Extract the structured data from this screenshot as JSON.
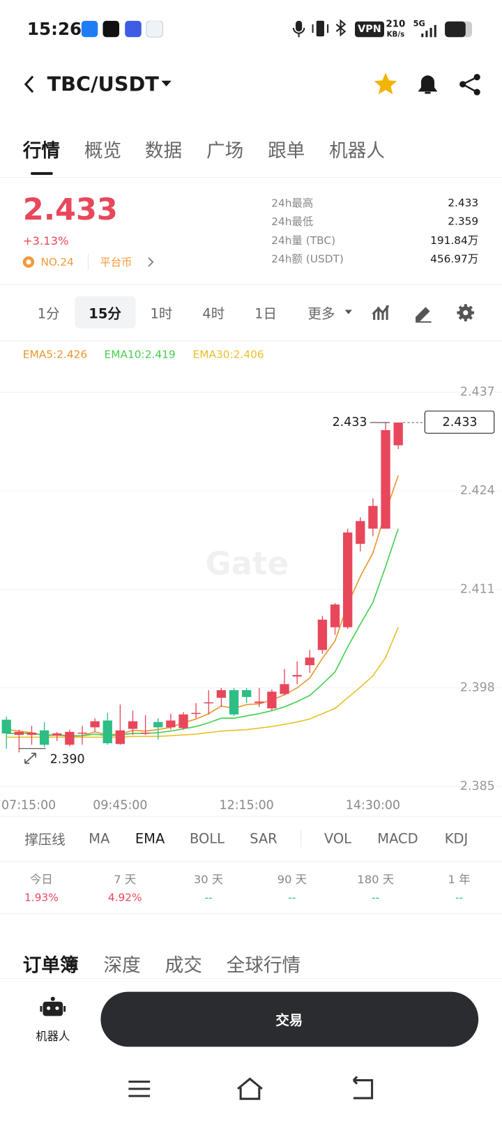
{
  "status_bar": {
    "time": "15:26",
    "vpn": "VPN",
    "speed": "210",
    "speed_unit": "KB/s",
    "network": "5G"
  },
  "header": {
    "pair": "TBC/USDT"
  },
  "tabs": [
    "行情",
    "概览",
    "数据",
    "广场",
    "跟单",
    "机器人"
  ],
  "ticker": {
    "price": "2.433",
    "change": "+3.13%",
    "rank": "NO.24",
    "tag": "平台币",
    "stats": [
      {
        "label": "24h最高",
        "value": "2.433"
      },
      {
        "label": "24h最低",
        "value": "2.359"
      },
      {
        "label": "24h量 (TBC)",
        "value": "191.84万"
      },
      {
        "label": "24h额 (USDT)",
        "value": "456.97万"
      }
    ]
  },
  "timeframes": [
    "1分",
    "15分",
    "1时",
    "4时",
    "1日",
    "更多"
  ],
  "chart_data": {
    "type": "candlestick",
    "watermark": "Gate",
    "grid": true,
    "categories": [
      "07:15:00",
      null,
      null,
      null,
      null,
      null,
      null,
      null,
      null,
      "09:45:00",
      null,
      null,
      null,
      null,
      null,
      null,
      null,
      null,
      null,
      "12:15:00",
      null,
      null,
      null,
      null,
      null,
      null,
      null,
      null,
      null,
      "14:30:00",
      null,
      null
    ],
    "up_color": "#e8475b",
    "down_color": "#2dbd85",
    "candles": {
      "open": [
        2.3938,
        2.3918,
        2.3918,
        2.3924,
        2.3917,
        2.3905,
        2.392,
        2.3928,
        2.3937,
        2.3906,
        2.3926,
        2.392,
        2.3935,
        2.3928,
        2.3927,
        2.3946,
        2.396,
        2.3967,
        2.3977,
        2.3977,
        2.396,
        2.3953,
        2.3972,
        2.3995,
        2.401,
        2.403,
        2.406,
        2.406,
        2.417,
        2.419,
        2.419,
        2.43
      ],
      "high": [
        2.3942,
        2.3925,
        2.393,
        2.3935,
        2.3922,
        2.3925,
        2.393,
        2.394,
        2.3947,
        2.3958,
        2.395,
        2.3944,
        2.394,
        2.3946,
        2.3948,
        2.396,
        2.3977,
        2.398,
        2.398,
        2.398,
        2.398,
        2.3978,
        2.4005,
        2.4015,
        2.403,
        2.4075,
        2.4092,
        2.419,
        2.4205,
        2.423,
        2.433,
        2.433
      ],
      "low": [
        2.39,
        2.3895,
        2.3905,
        2.3902,
        2.391,
        2.3903,
        2.3905,
        2.3922,
        2.3905,
        2.3905,
        2.3918,
        2.3918,
        2.3912,
        2.3925,
        2.3925,
        2.394,
        2.3945,
        2.3955,
        2.3943,
        2.396,
        2.3955,
        2.395,
        2.397,
        2.3985,
        2.4,
        2.4025,
        2.405,
        2.4058,
        2.416,
        2.418,
        2.419,
        2.4295
      ],
      "close": [
        2.392,
        2.3922,
        2.3921,
        2.3905,
        2.392,
        2.3922,
        2.3921,
        2.3936,
        2.3907,
        2.3924,
        2.3936,
        2.3921,
        2.3928,
        2.3937,
        2.3945,
        2.3947,
        2.3961,
        2.3977,
        2.3945,
        2.3968,
        2.3962,
        2.3975,
        2.3985,
        2.3997,
        2.402,
        2.407,
        2.409,
        2.4185,
        2.42,
        2.422,
        2.432,
        2.433
      ]
    },
    "series": [
      {
        "name": "EMA5:2.426",
        "color": "#e8962e",
        "values": [
          2.3925,
          2.3923,
          2.3921,
          2.3917,
          2.3918,
          2.3916,
          2.3917,
          2.3922,
          2.3918,
          2.3919,
          2.3924,
          2.3923,
          2.3925,
          2.3928,
          2.3934,
          2.3939,
          2.3946,
          2.3956,
          2.3953,
          2.3958,
          2.3959,
          2.3964,
          2.3971,
          2.398,
          2.3993,
          2.4019,
          2.4042,
          2.409,
          2.4127,
          2.4158,
          2.4212,
          2.426
        ]
      },
      {
        "name": "EMA10:2.419",
        "color": "#45cf4f",
        "values": [
          2.392,
          2.392,
          2.392,
          2.3918,
          2.3918,
          2.3917,
          2.3917,
          2.3919,
          2.3917,
          2.3918,
          2.392,
          2.392,
          2.3921,
          2.3923,
          2.3926,
          2.3929,
          2.3934,
          2.394,
          2.394,
          2.3943,
          2.3946,
          2.395,
          2.3955,
          2.3962,
          2.397,
          2.3985,
          2.4001,
          2.4034,
          2.4064,
          2.4093,
          2.414,
          2.419
        ]
      },
      {
        "name": "EMA30:2.406",
        "color": "#e8c02a",
        "values": [
          2.3915,
          2.3915,
          2.3915,
          2.3915,
          2.3915,
          2.3915,
          2.3915,
          2.3915,
          2.3915,
          2.3915,
          2.3916,
          2.3916,
          2.3916,
          2.3917,
          2.3918,
          2.3919,
          2.3921,
          2.3923,
          2.3924,
          2.3925,
          2.3927,
          2.3929,
          2.3932,
          2.3935,
          2.3939,
          2.3946,
          2.3953,
          2.3967,
          2.3981,
          2.3996,
          2.402,
          2.406
        ]
      }
    ],
    "ylim": [
      2.3842,
      2.4407
    ],
    "yticks": [
      2.437,
      2.424,
      2.411,
      2.398,
      2.385
    ],
    "high_marker": 2.433,
    "low_marker": {
      "value": 2.39,
      "label": "2.390"
    },
    "last_price": 2.433
  },
  "indicators": [
    "撑压线",
    "MA",
    "EMA",
    "BOLL",
    "SAR",
    "VOL",
    "MACD",
    "KDJ"
  ],
  "performance": [
    {
      "label": "今日",
      "value": "1.93%",
      "color": "#e8475b"
    },
    {
      "label": "7 天",
      "value": "4.92%",
      "color": "#e8475b"
    },
    {
      "label": "30 天",
      "value": "--",
      "color": "#2dbd85"
    },
    {
      "label": "90 天",
      "value": "--",
      "color": "#2dbd85"
    },
    {
      "label": "180 天",
      "value": "--",
      "color": "#2dbd85"
    },
    {
      "label": "1 年",
      "value": "--",
      "color": "#2dbd85"
    }
  ],
  "book_tabs": [
    "订单簿",
    "深度",
    "成交",
    "全球行情"
  ],
  "bottom": {
    "robot": "机器人",
    "trade": "交易"
  }
}
